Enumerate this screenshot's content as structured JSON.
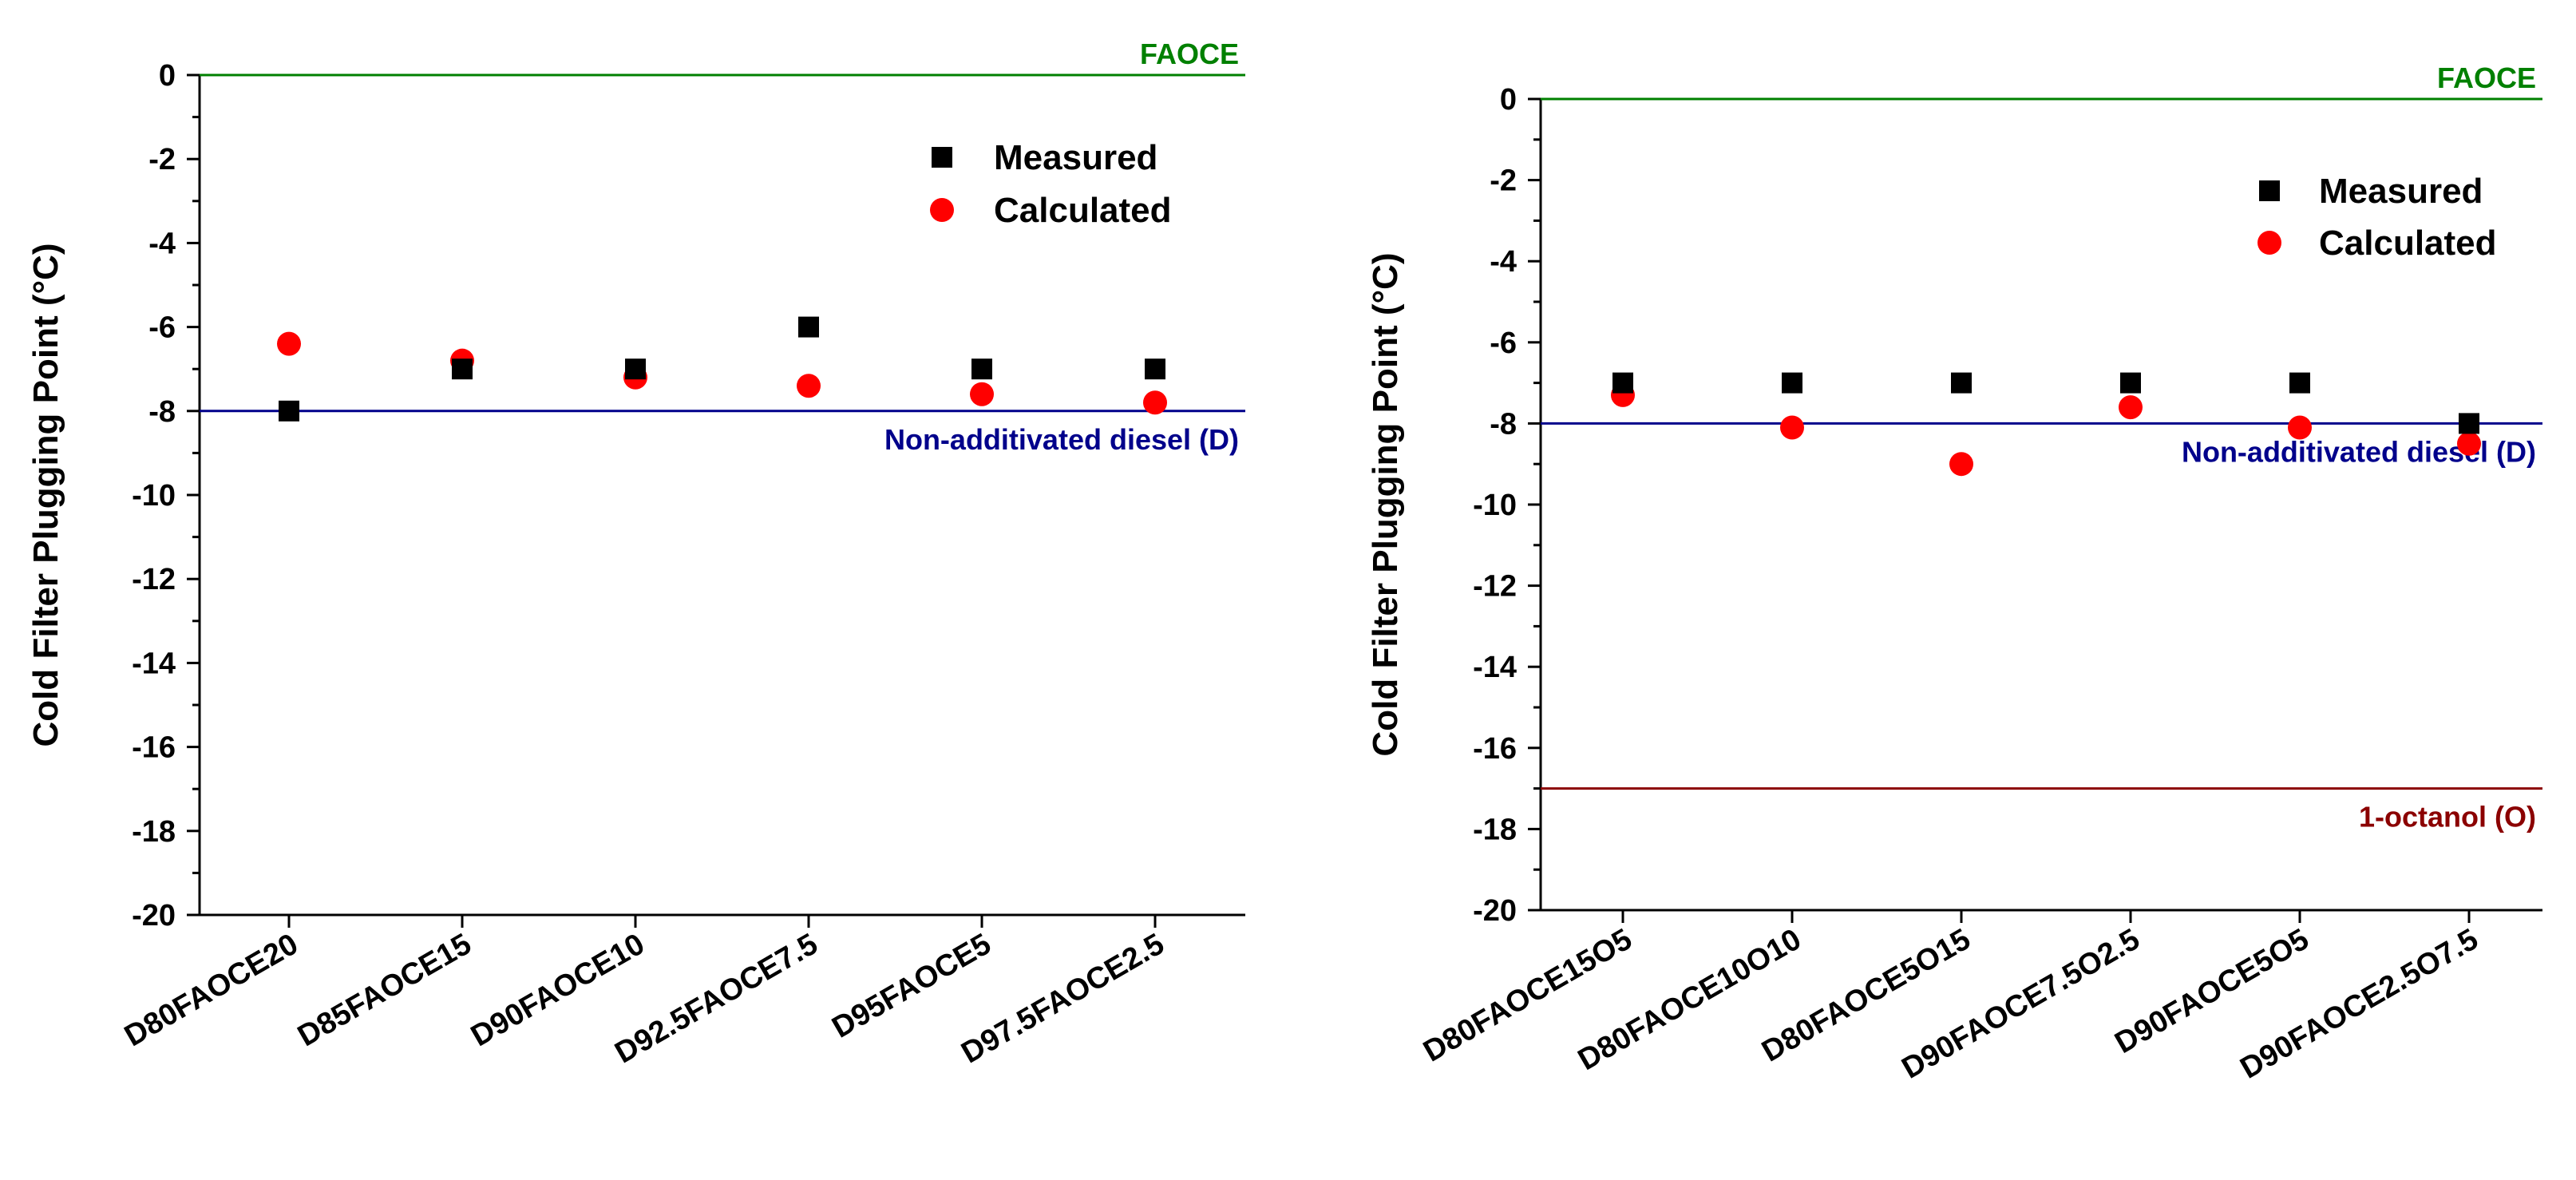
{
  "chart_data": [
    {
      "type": "scatter",
      "ylabel": "Cold Filter Plugging Point (°C)",
      "ylim": [
        -20,
        0
      ],
      "yticks": [
        0,
        -2,
        -4,
        -6,
        -8,
        -10,
        -12,
        -14,
        -16,
        -18,
        -20
      ],
      "categories": [
        "D80FAOCE20",
        "D85FAOCE15",
        "D90FAOCE10",
        "D92.5FAOCE7.5",
        "D95FAOCE5",
        "D97.5FAOCE2.5"
      ],
      "series": [
        {
          "name": "Measured",
          "marker": "square",
          "color": "#000000",
          "values": [
            -8,
            -7,
            -7,
            -6,
            -7,
            -7
          ]
        },
        {
          "name": "Calculated",
          "marker": "circle",
          "color": "#ff0000",
          "values": [
            -6.4,
            -6.8,
            -7.2,
            -7.4,
            -7.6,
            -7.8
          ]
        }
      ],
      "reference_lines": [
        {
          "label": "FAOCE",
          "value": 0,
          "color": "#008000"
        },
        {
          "label": "Non-additivated diesel (D)",
          "value": -8,
          "color": "#00008b"
        }
      ],
      "legend_position": "top-right"
    },
    {
      "type": "scatter",
      "ylabel": "Cold Filter Plugging Point (°C)",
      "ylim": [
        -20,
        0
      ],
      "yticks": [
        0,
        -2,
        -4,
        -6,
        -8,
        -10,
        -12,
        -14,
        -16,
        -18,
        -20
      ],
      "categories": [
        "D80FAOCE15O5",
        "D80FAOCE10O10",
        "D80FAOCE5O15",
        "D90FAOCE7.5O2.5",
        "D90FAOCE5O5",
        "D90FAOCE2.5O7.5"
      ],
      "series": [
        {
          "name": "Measured",
          "marker": "square",
          "color": "#000000",
          "values": [
            -7,
            -7,
            -7,
            -7,
            -7,
            -8
          ]
        },
        {
          "name": "Calculated",
          "marker": "circle",
          "color": "#ff0000",
          "values": [
            -7.3,
            -8.1,
            -9,
            -7.6,
            -8.1,
            -8.5
          ]
        }
      ],
      "reference_lines": [
        {
          "label": "FAOCE",
          "value": 0,
          "color": "#008000"
        },
        {
          "label": "Non-additivated diesel (D)",
          "value": -8,
          "color": "#00008b"
        },
        {
          "label": "1-octanol (O)",
          "value": -17,
          "color": "#8b0000"
        }
      ],
      "legend_position": "top-right"
    }
  ]
}
